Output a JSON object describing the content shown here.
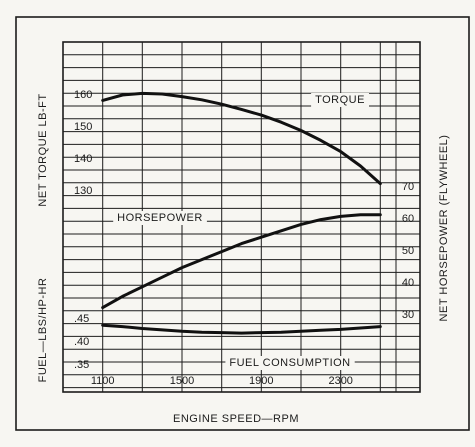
{
  "chart_data": {
    "type": "line",
    "title": "",
    "x_axis": {
      "label": "ENGINE SPEED—RPM",
      "ticks": [
        1100,
        1500,
        1900,
        2300
      ],
      "range": [
        900,
        2700
      ]
    },
    "axes_left": [
      {
        "key": "torque",
        "label": "NET TORQUE LB-FT",
        "ticks": [
          130,
          140,
          150,
          160
        ],
        "range": [
          127.5,
          167.5
        ]
      },
      {
        "key": "fuel",
        "label": "FUEL—LBS/HP-HR",
        "ticks": [
          ".35",
          ".40",
          ".45"
        ],
        "tick_values": [
          0.35,
          0.4,
          0.45
        ],
        "range": [
          0.3375,
          0.4625
        ]
      }
    ],
    "axis_right": {
      "key": "horsepower",
      "label": "NET HORSEPOWER (FLYWHEEL)",
      "ticks": [
        30,
        40,
        50,
        60,
        70
      ],
      "range": [
        25,
        75
      ]
    },
    "series": [
      {
        "name": "TORQUE",
        "axis": "torque",
        "x": [
          1100,
          1200,
          1300,
          1400,
          1500,
          1600,
          1700,
          1800,
          1900,
          2000,
          2100,
          2200,
          2300,
          2400,
          2500
        ],
        "y": [
          158,
          159.7,
          160.2,
          160,
          159.2,
          158.2,
          156.8,
          155.2,
          153.4,
          151.2,
          148.6,
          145.5,
          142,
          137.5,
          132
        ]
      },
      {
        "name": "HORSEPOWER",
        "axis": "horsepower",
        "x": [
          1100,
          1200,
          1300,
          1400,
          1500,
          1600,
          1700,
          1800,
          1900,
          2000,
          2100,
          2200,
          2300,
          2400,
          2500
        ],
        "y": [
          32,
          35.5,
          38.5,
          41.5,
          44.5,
          47,
          49.5,
          52,
          54,
          56,
          58,
          59.5,
          60.5,
          61,
          61
        ]
      },
      {
        "name": "FUEL CONSUMPTION",
        "axis": "fuel",
        "x": [
          1100,
          1200,
          1300,
          1400,
          1500,
          1600,
          1700,
          1800,
          1900,
          2000,
          2100,
          2200,
          2300,
          2400,
          2500
        ],
        "y": [
          0.434,
          0.431,
          0.427,
          0.424,
          0.421,
          0.419,
          0.418,
          0.417,
          0.418,
          0.419,
          0.421,
          0.423,
          0.425,
          0.428,
          0.431
        ]
      }
    ],
    "grid": true
  }
}
